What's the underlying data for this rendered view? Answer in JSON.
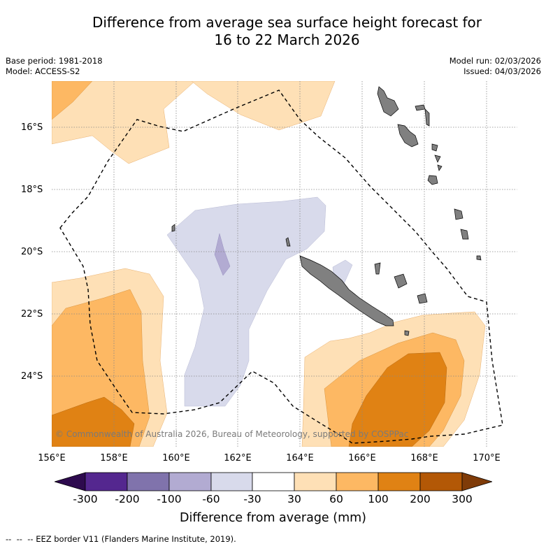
{
  "title": {
    "line1": "Difference from average sea surface height forecast for",
    "line2": "16 to 22 March 2026"
  },
  "meta": {
    "base_period": "Base period: 1981-2018",
    "model": "Model: ACCESS-S2",
    "model_run": "Model run: 02/03/2026",
    "issued": "Issued: 04/03/2026"
  },
  "map": {
    "lat_labels": [
      "16°S",
      "18°S",
      "20°S",
      "22°S",
      "24°S"
    ],
    "lon_labels": [
      "156°E",
      "158°E",
      "160°E",
      "162°E",
      "164°E",
      "166°E",
      "168°E",
      "170°E"
    ],
    "copyright": "© Commonwealth of Australia 2026, Bureau of Meteorology, supported by COSPPac",
    "land_color": "#808080"
  },
  "colorbar": {
    "ticks": [
      "-300",
      "-200",
      "-100",
      "-60",
      "-30",
      "30",
      "60",
      "100",
      "200",
      "300"
    ],
    "colors": [
      "#2d0a4e",
      "#54278f",
      "#8073ac",
      "#b2abd2",
      "#d8daeb",
      "#ffffff",
      "#fee0b6",
      "#fdb863",
      "#e08214",
      "#b35806",
      "#7f3b08"
    ],
    "label": "Difference from average (mm)"
  },
  "legend": {
    "eez_note": "EEZ border V11 (Flanders Marine Institute, 2019)."
  }
}
